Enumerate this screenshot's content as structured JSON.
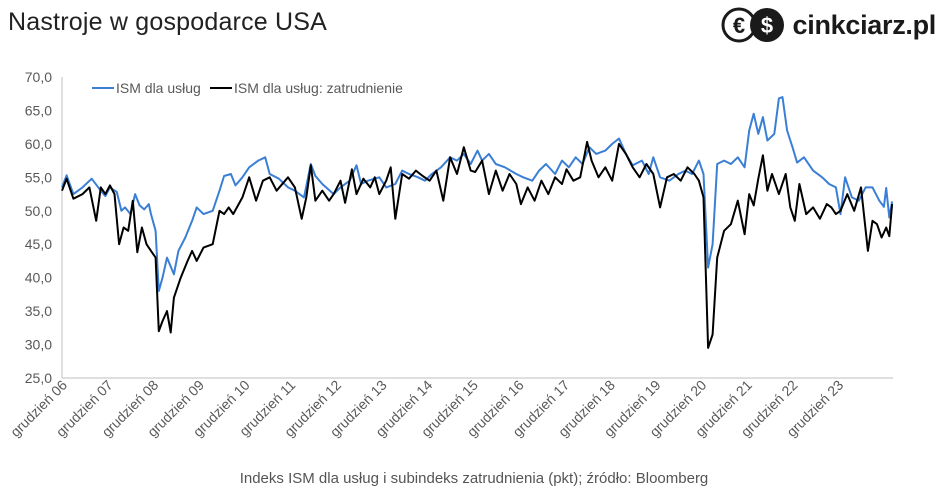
{
  "title": "Nastroje w gospodarce USA",
  "logo": {
    "text": "cinkciarz.pl",
    "icon": "euro-dollar-coins-icon"
  },
  "caption": "Indeks ISM dla usług i subindeks zatrudnienia (pkt); źródło: Bloomberg",
  "chart_data": {
    "type": "line",
    "title": "Nastroje w gospodarce USA",
    "ylim": [
      25,
      70
    ],
    "yticks": [
      "25,0",
      "30,0",
      "35,0",
      "40,0",
      "45,0",
      "50,0",
      "55,0",
      "60,0",
      "65,0",
      "70,0"
    ],
    "x_labels": [
      "grudzień 06",
      "grudzień 07",
      "grudzień 08",
      "grudzień 09",
      "grudzień 10",
      "grudzień 11",
      "grudzień 12",
      "grudzień 13",
      "grudzień 14",
      "grudzień 15",
      "grudzień 16",
      "grudzień 17",
      "grudzień 18",
      "grudzień 19",
      "grudzień 20",
      "grudzień 21",
      "grudzień 22",
      "grudzień 23"
    ],
    "x_range": [
      2006.0,
      2024.2
    ],
    "legend_position": "top-left",
    "grid": false,
    "colors": {
      "ism": "#3a7fd5",
      "employment": "#000000"
    },
    "series": [
      {
        "name": "ISM dla usług",
        "color": "#3a7fd5",
        "points": [
          [
            2006.0,
            53.5
          ],
          [
            2006.1,
            55.3
          ],
          [
            2006.25,
            52.5
          ],
          [
            2006.45,
            53.5
          ],
          [
            2006.65,
            54.8
          ],
          [
            2006.85,
            53.0
          ],
          [
            2006.95,
            52.2
          ],
          [
            2007.05,
            53.5
          ],
          [
            2007.2,
            52.8
          ],
          [
            2007.3,
            50.0
          ],
          [
            2007.38,
            50.5
          ],
          [
            2007.5,
            49.5
          ],
          [
            2007.6,
            52.5
          ],
          [
            2007.7,
            50.8
          ],
          [
            2007.8,
            50.2
          ],
          [
            2007.9,
            51.0
          ],
          [
            2007.95,
            49.5
          ],
          [
            2008.05,
            47.0
          ],
          [
            2008.12,
            38.0
          ],
          [
            2008.2,
            40.0
          ],
          [
            2008.3,
            43.0
          ],
          [
            2008.45,
            40.5
          ],
          [
            2008.55,
            44.0
          ],
          [
            2008.7,
            46.0
          ],
          [
            2008.85,
            48.5
          ],
          [
            2008.95,
            50.5
          ],
          [
            2009.1,
            49.5
          ],
          [
            2009.3,
            50.0
          ],
          [
            2009.45,
            53.0
          ],
          [
            2009.55,
            55.2
          ],
          [
            2009.7,
            55.5
          ],
          [
            2009.8,
            53.8
          ],
          [
            2009.95,
            55.0
          ],
          [
            2010.1,
            56.5
          ],
          [
            2010.3,
            57.5
          ],
          [
            2010.45,
            58.0
          ],
          [
            2010.55,
            55.5
          ],
          [
            2010.75,
            54.8
          ],
          [
            2010.95,
            53.5
          ],
          [
            2011.1,
            53.0
          ],
          [
            2011.3,
            52.0
          ],
          [
            2011.45,
            57.0
          ],
          [
            2011.55,
            55.2
          ],
          [
            2011.7,
            54.0
          ],
          [
            2011.95,
            52.5
          ],
          [
            2012.1,
            53.5
          ],
          [
            2012.3,
            54.5
          ],
          [
            2012.45,
            56.8
          ],
          [
            2012.55,
            54.0
          ],
          [
            2012.7,
            54.5
          ],
          [
            2012.95,
            55.0
          ],
          [
            2013.1,
            53.5
          ],
          [
            2013.3,
            54.0
          ],
          [
            2013.45,
            56.0
          ],
          [
            2013.6,
            55.5
          ],
          [
            2013.8,
            55.0
          ],
          [
            2013.95,
            54.5
          ],
          [
            2014.1,
            55.5
          ],
          [
            2014.3,
            56.5
          ],
          [
            2014.5,
            58.0
          ],
          [
            2014.65,
            57.5
          ],
          [
            2014.8,
            58.5
          ],
          [
            2014.95,
            57.0
          ],
          [
            2015.1,
            59.0
          ],
          [
            2015.2,
            57.5
          ],
          [
            2015.35,
            58.5
          ],
          [
            2015.5,
            57.0
          ],
          [
            2015.7,
            56.5
          ],
          [
            2015.95,
            55.5
          ],
          [
            2016.1,
            55.0
          ],
          [
            2016.3,
            54.5
          ],
          [
            2016.45,
            56.0
          ],
          [
            2016.6,
            57.0
          ],
          [
            2016.8,
            55.5
          ],
          [
            2016.95,
            57.5
          ],
          [
            2017.1,
            56.5
          ],
          [
            2017.25,
            58.0
          ],
          [
            2017.4,
            57.0
          ],
          [
            2017.55,
            59.5
          ],
          [
            2017.7,
            58.5
          ],
          [
            2017.9,
            59.0
          ],
          [
            2018.05,
            60.0
          ],
          [
            2018.2,
            60.8
          ],
          [
            2018.35,
            58.5
          ],
          [
            2018.5,
            56.8
          ],
          [
            2018.7,
            57.5
          ],
          [
            2018.85,
            55.5
          ],
          [
            2018.95,
            58.0
          ],
          [
            2019.1,
            55.0
          ],
          [
            2019.3,
            54.5
          ],
          [
            2019.5,
            55.5
          ],
          [
            2019.65,
            56.0
          ],
          [
            2019.8,
            55.5
          ],
          [
            2019.95,
            57.5
          ],
          [
            2020.05,
            55.5
          ],
          [
            2020.15,
            41.5
          ],
          [
            2020.25,
            45.0
          ],
          [
            2020.35,
            57.0
          ],
          [
            2020.5,
            57.5
          ],
          [
            2020.65,
            57.0
          ],
          [
            2020.8,
            58.0
          ],
          [
            2020.95,
            56.5
          ],
          [
            2021.05,
            62.0
          ],
          [
            2021.15,
            64.5
          ],
          [
            2021.25,
            61.5
          ],
          [
            2021.35,
            64.0
          ],
          [
            2021.45,
            60.5
          ],
          [
            2021.6,
            61.5
          ],
          [
            2021.7,
            66.8
          ],
          [
            2021.78,
            67.0
          ],
          [
            2021.88,
            62.0
          ],
          [
            2022.0,
            59.5
          ],
          [
            2022.1,
            57.2
          ],
          [
            2022.25,
            58.0
          ],
          [
            2022.45,
            56.0
          ],
          [
            2022.65,
            55.0
          ],
          [
            2022.8,
            54.0
          ],
          [
            2022.95,
            53.5
          ],
          [
            2023.05,
            49.5
          ],
          [
            2023.15,
            55.0
          ],
          [
            2023.3,
            52.0
          ],
          [
            2023.45,
            51.5
          ],
          [
            2023.6,
            53.5
          ],
          [
            2023.75,
            53.5
          ],
          [
            2023.9,
            51.5
          ],
          [
            2024.0,
            50.6
          ],
          [
            2024.05,
            53.4
          ],
          [
            2024.12,
            49.0
          ],
          [
            2024.18,
            51.4
          ]
        ]
      },
      {
        "name": "ISM dla usług: zatrudnienie",
        "color": "#000000",
        "points": [
          [
            2006.0,
            53.0
          ],
          [
            2006.1,
            54.8
          ],
          [
            2006.25,
            51.8
          ],
          [
            2006.45,
            52.5
          ],
          [
            2006.6,
            53.5
          ],
          [
            2006.75,
            48.5
          ],
          [
            2006.85,
            53.5
          ],
          [
            2006.95,
            52.5
          ],
          [
            2007.05,
            53.8
          ],
          [
            2007.15,
            52.5
          ],
          [
            2007.25,
            45.0
          ],
          [
            2007.35,
            47.5
          ],
          [
            2007.45,
            47.0
          ],
          [
            2007.55,
            51.5
          ],
          [
            2007.65,
            43.8
          ],
          [
            2007.75,
            47.5
          ],
          [
            2007.85,
            45.0
          ],
          [
            2007.95,
            44.0
          ],
          [
            2008.05,
            43.0
          ],
          [
            2008.12,
            32.0
          ],
          [
            2008.2,
            33.5
          ],
          [
            2008.3,
            35.0
          ],
          [
            2008.38,
            31.8
          ],
          [
            2008.45,
            37.0
          ],
          [
            2008.6,
            40.0
          ],
          [
            2008.75,
            42.5
          ],
          [
            2008.85,
            44.0
          ],
          [
            2008.95,
            42.5
          ],
          [
            2009.1,
            44.5
          ],
          [
            2009.3,
            45.0
          ],
          [
            2009.45,
            50.0
          ],
          [
            2009.55,
            49.5
          ],
          [
            2009.65,
            50.5
          ],
          [
            2009.75,
            49.5
          ],
          [
            2009.95,
            52.0
          ],
          [
            2010.1,
            55.0
          ],
          [
            2010.25,
            51.5
          ],
          [
            2010.4,
            54.5
          ],
          [
            2010.55,
            55.0
          ],
          [
            2010.7,
            53.0
          ],
          [
            2010.95,
            55.0
          ],
          [
            2011.1,
            53.5
          ],
          [
            2011.25,
            48.8
          ],
          [
            2011.35,
            52.0
          ],
          [
            2011.45,
            56.8
          ],
          [
            2011.55,
            51.5
          ],
          [
            2011.7,
            53.0
          ],
          [
            2011.85,
            51.5
          ],
          [
            2011.95,
            52.5
          ],
          [
            2012.1,
            54.5
          ],
          [
            2012.2,
            51.2
          ],
          [
            2012.35,
            56.2
          ],
          [
            2012.45,
            52.5
          ],
          [
            2012.6,
            54.8
          ],
          [
            2012.75,
            53.5
          ],
          [
            2012.85,
            55.0
          ],
          [
            2012.95,
            52.5
          ],
          [
            2013.1,
            54.5
          ],
          [
            2013.2,
            56.5
          ],
          [
            2013.3,
            48.8
          ],
          [
            2013.45,
            55.5
          ],
          [
            2013.6,
            54.8
          ],
          [
            2013.75,
            56.0
          ],
          [
            2013.9,
            55.2
          ],
          [
            2014.05,
            54.5
          ],
          [
            2014.2,
            56.0
          ],
          [
            2014.35,
            51.5
          ],
          [
            2014.5,
            58.0
          ],
          [
            2014.65,
            55.5
          ],
          [
            2014.8,
            59.5
          ],
          [
            2014.95,
            56.0
          ],
          [
            2015.05,
            55.8
          ],
          [
            2015.2,
            57.5
          ],
          [
            2015.35,
            52.5
          ],
          [
            2015.5,
            56.0
          ],
          [
            2015.65,
            53.0
          ],
          [
            2015.8,
            55.5
          ],
          [
            2015.95,
            54.0
          ],
          [
            2016.05,
            51.0
          ],
          [
            2016.2,
            53.5
          ],
          [
            2016.35,
            51.5
          ],
          [
            2016.5,
            54.5
          ],
          [
            2016.65,
            52.5
          ],
          [
            2016.8,
            55.0
          ],
          [
            2016.95,
            54.0
          ],
          [
            2017.05,
            56.2
          ],
          [
            2017.2,
            54.5
          ],
          [
            2017.35,
            55.0
          ],
          [
            2017.5,
            60.3
          ],
          [
            2017.6,
            57.5
          ],
          [
            2017.75,
            55.0
          ],
          [
            2017.9,
            56.5
          ],
          [
            2018.05,
            54.5
          ],
          [
            2018.2,
            60.0
          ],
          [
            2018.35,
            58.5
          ],
          [
            2018.5,
            56.5
          ],
          [
            2018.65,
            55.0
          ],
          [
            2018.8,
            57.0
          ],
          [
            2018.95,
            55.5
          ],
          [
            2019.1,
            50.5
          ],
          [
            2019.25,
            55.0
          ],
          [
            2019.4,
            55.5
          ],
          [
            2019.55,
            54.5
          ],
          [
            2019.7,
            56.5
          ],
          [
            2019.85,
            55.5
          ],
          [
            2019.95,
            54.5
          ],
          [
            2020.05,
            52.0
          ],
          [
            2020.15,
            29.5
          ],
          [
            2020.25,
            31.5
          ],
          [
            2020.35,
            43.0
          ],
          [
            2020.5,
            47.0
          ],
          [
            2020.65,
            48.0
          ],
          [
            2020.8,
            51.5
          ],
          [
            2020.95,
            46.5
          ],
          [
            2021.05,
            52.5
          ],
          [
            2021.15,
            50.8
          ],
          [
            2021.25,
            54.8
          ],
          [
            2021.35,
            58.3
          ],
          [
            2021.45,
            53.0
          ],
          [
            2021.55,
            55.5
          ],
          [
            2021.7,
            52.5
          ],
          [
            2021.85,
            55.5
          ],
          [
            2021.95,
            50.5
          ],
          [
            2022.05,
            48.5
          ],
          [
            2022.15,
            54.0
          ],
          [
            2022.3,
            49.5
          ],
          [
            2022.45,
            50.5
          ],
          [
            2022.6,
            48.8
          ],
          [
            2022.75,
            51.0
          ],
          [
            2022.85,
            50.5
          ],
          [
            2022.95,
            49.5
          ],
          [
            2023.05,
            50.0
          ],
          [
            2023.2,
            52.5
          ],
          [
            2023.35,
            50.0
          ],
          [
            2023.5,
            53.5
          ],
          [
            2023.65,
            44.0
          ],
          [
            2023.75,
            48.5
          ],
          [
            2023.85,
            48.0
          ],
          [
            2023.95,
            46.0
          ],
          [
            2024.05,
            47.5
          ],
          [
            2024.12,
            46.2
          ],
          [
            2024.18,
            51.0
          ]
        ]
      }
    ]
  }
}
